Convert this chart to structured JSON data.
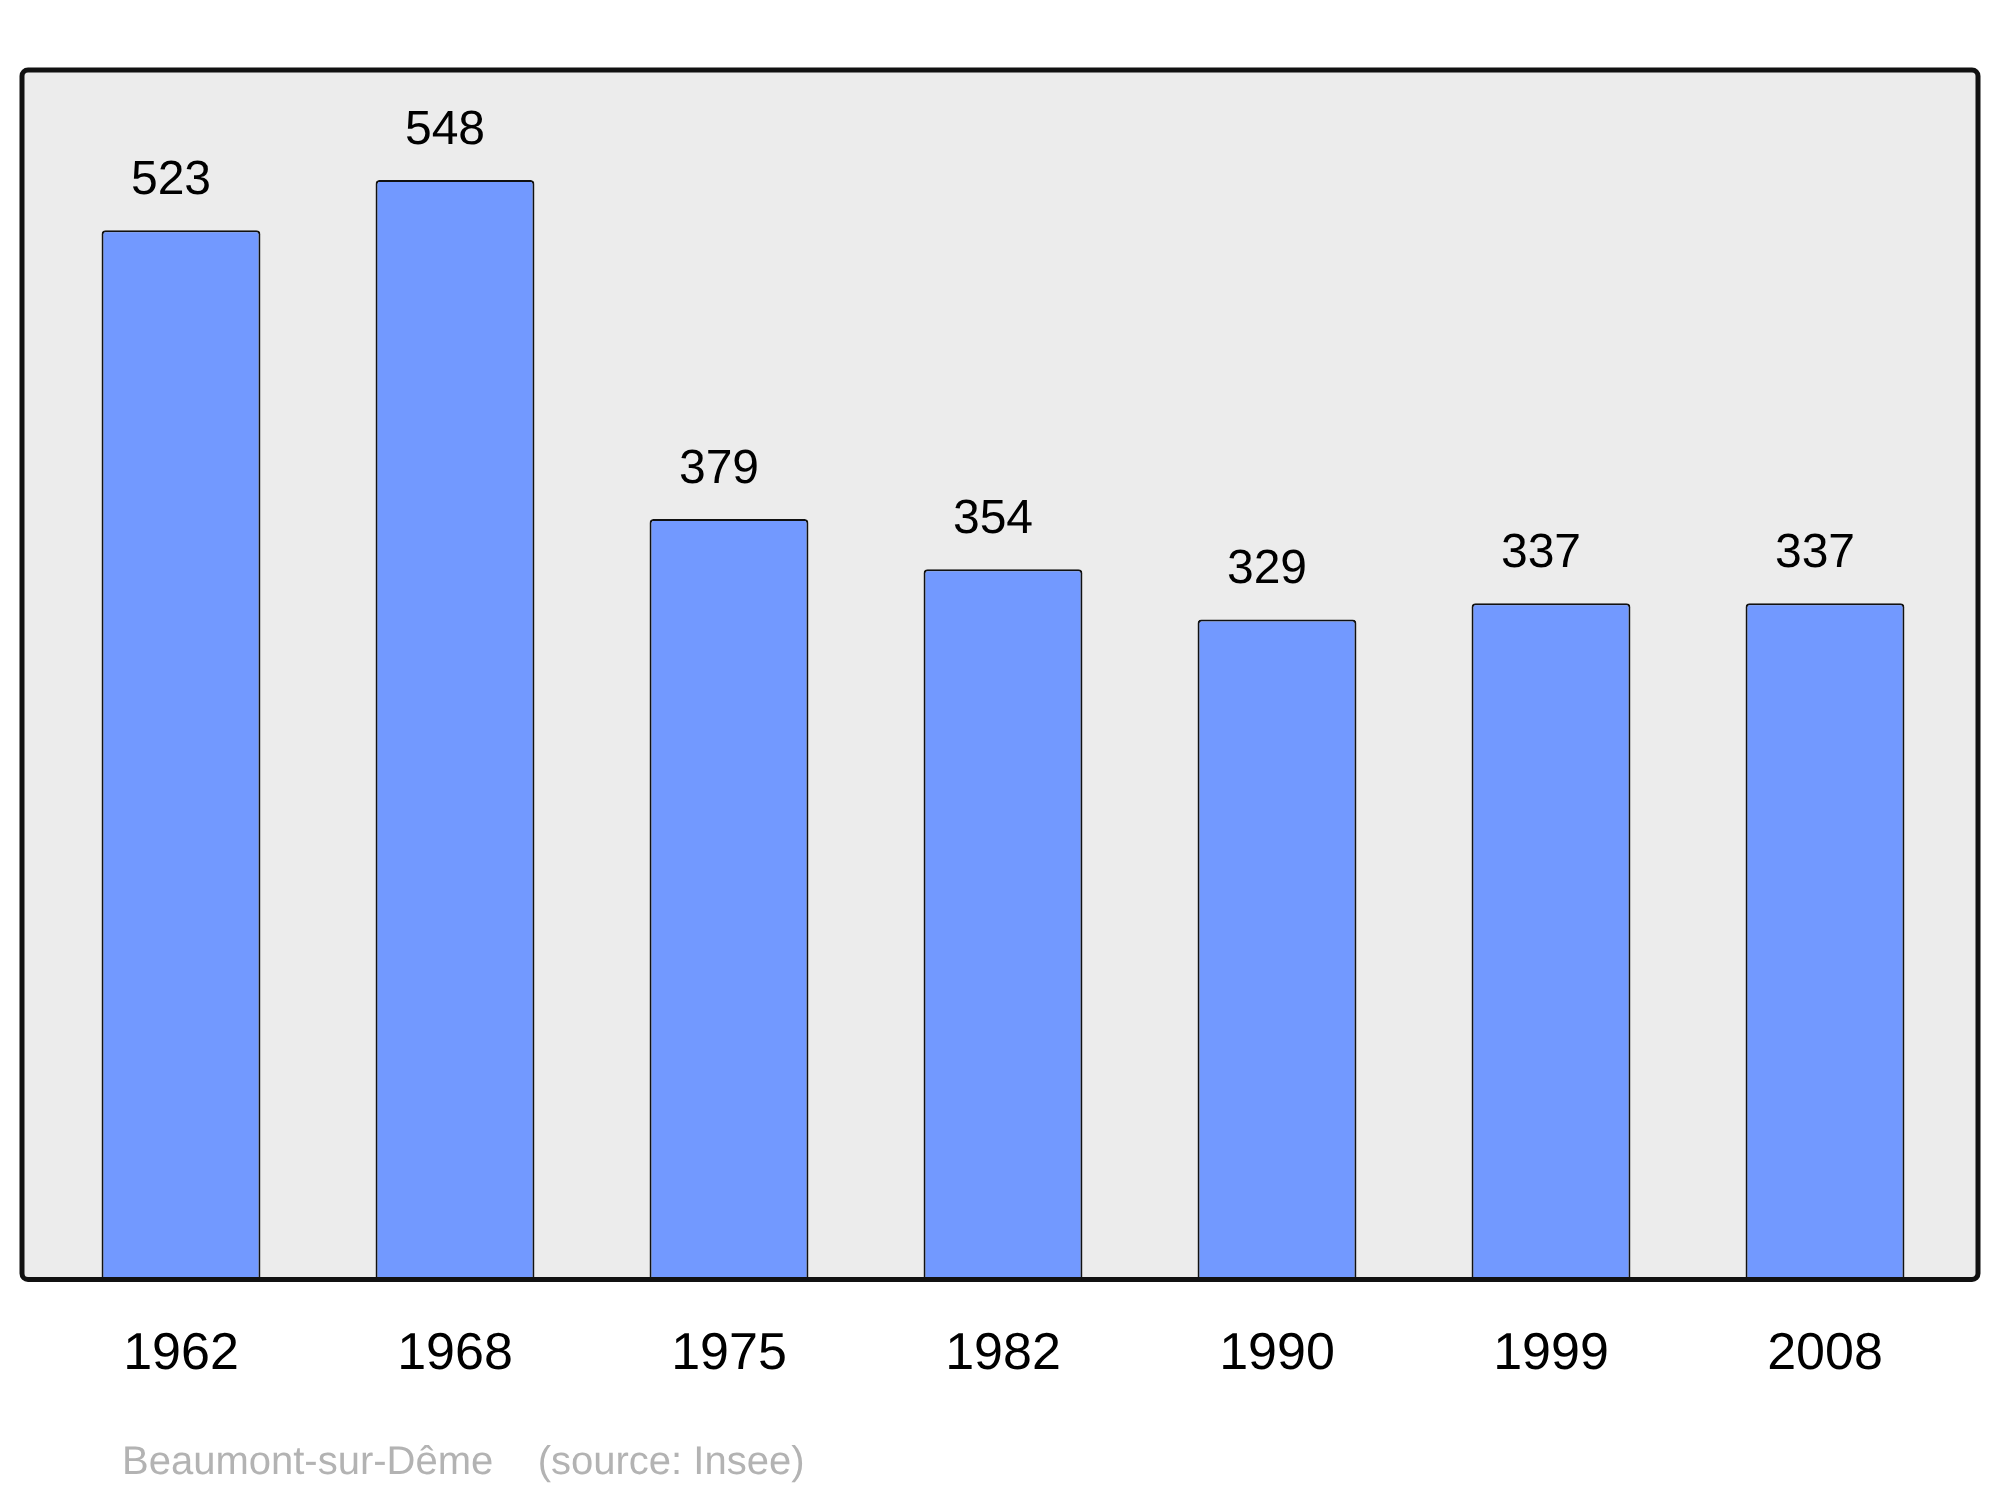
{
  "chart_data": {
    "type": "bar",
    "categories": [
      "1962",
      "1968",
      "1975",
      "1982",
      "1990",
      "1999",
      "2008"
    ],
    "values": [
      523,
      548,
      379,
      354,
      329,
      337,
      337
    ],
    "color": "#7299ff",
    "data_labels": true,
    "annotations": [
      "Beaumont-sur-Dême    (source: Insee)"
    ]
  }
}
